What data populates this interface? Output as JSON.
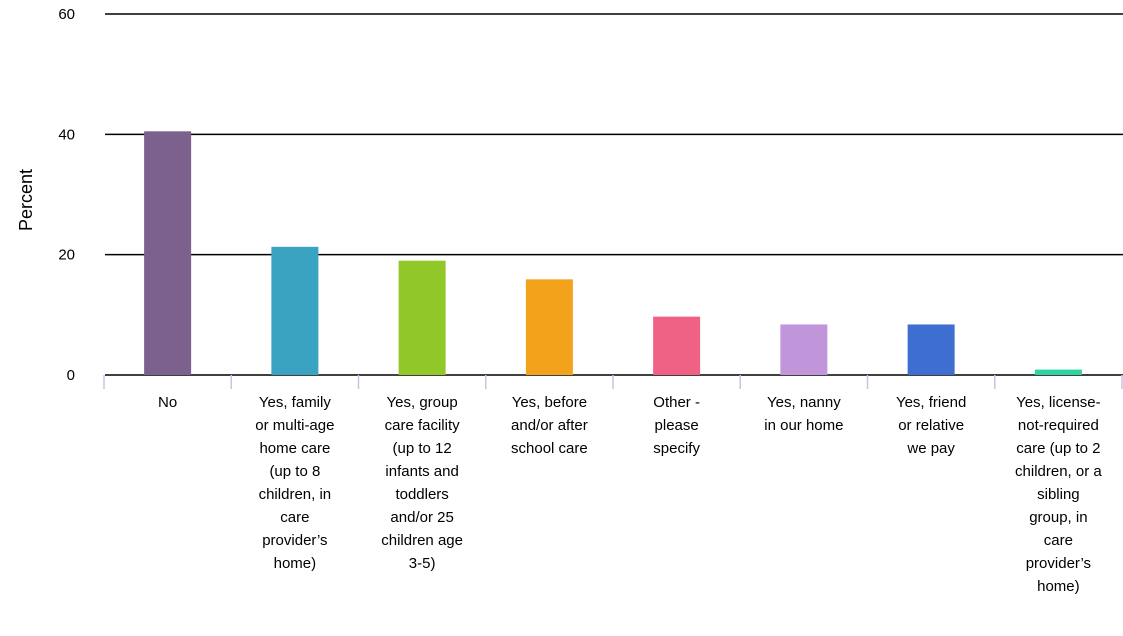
{
  "chart_data": {
    "type": "bar",
    "ylabel": "Percent",
    "xlabel": "",
    "ylim": [
      0,
      60
    ],
    "yticks": [
      "0",
      "20",
      "40",
      "60"
    ],
    "grid": true,
    "categories": [
      "No",
      "Yes, family or multi-age home care (up to 8 children, in care provider’s home)",
      "Yes, group care facility (up to 12 infants and toddlers and/or 25 children age 3-5)",
      "Yes, before and/or after school care",
      "Other - please specify",
      "Yes, nanny in our home",
      "Yes, friend or relative we pay",
      "Yes, license-not-required care (up to 2 children, or a sibling group, in care provider’s home)"
    ],
    "category_lines": [
      [
        "No"
      ],
      [
        "Yes, family",
        "or multi-age",
        "home care",
        "(up to 8",
        "children, in",
        "care",
        "provider’s",
        "home)"
      ],
      [
        "Yes, group",
        "care facility",
        "(up to 12",
        "infants and",
        "toddlers",
        "and/or 25",
        "children age",
        "3-5)"
      ],
      [
        "Yes, before",
        "and/or after",
        "school care"
      ],
      [
        "Other -",
        "please",
        "specify"
      ],
      [
        "Yes, nanny",
        "in our home"
      ],
      [
        "Yes, friend",
        "or relative",
        "we pay"
      ],
      [
        "Yes, license-",
        "not-required",
        "care (up to 2",
        "children, or a",
        "sibling",
        "group, in",
        "care",
        "provider’s",
        "home)"
      ]
    ],
    "values": [
      40.5,
      21.3,
      19.0,
      15.9,
      9.7,
      8.4,
      8.4,
      0.9
    ],
    "colors": [
      "#7b618c",
      "#3aa3c2",
      "#92c729",
      "#f3a31b",
      "#ef6286",
      "#c195da",
      "#3d6ed0",
      "#2ed3a1"
    ]
  }
}
